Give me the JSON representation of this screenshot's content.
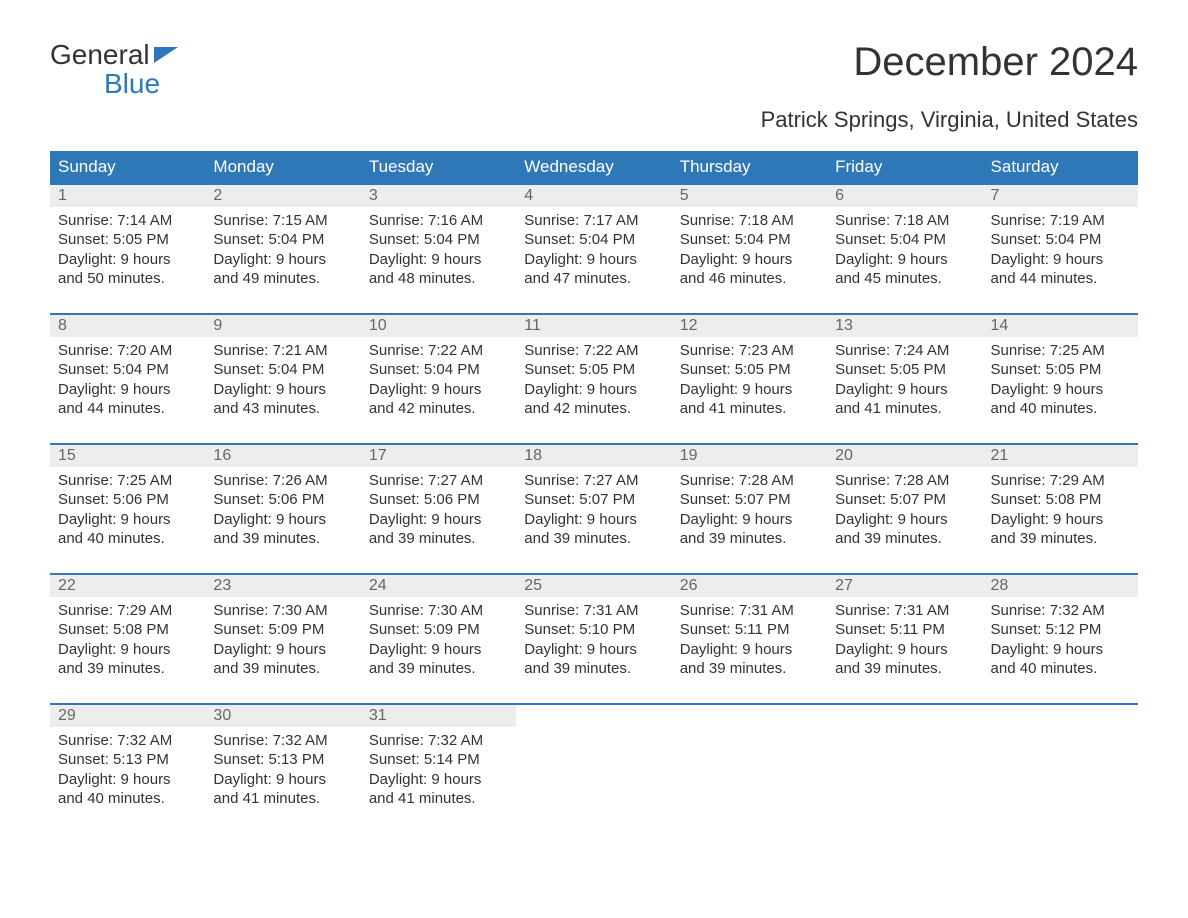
{
  "logo": {
    "line1": "General",
    "line2": "Blue"
  },
  "title": "December 2024",
  "subtitle": "Patrick Springs, Virginia, United States",
  "colors": {
    "header_bg": "#2f78b7",
    "header_text": "#ffffff",
    "daynum_bg": "#ededed",
    "daynum_text": "#666666",
    "body_text": "#333333",
    "row_border": "#2f78b7"
  },
  "weekdays": [
    "Sunday",
    "Monday",
    "Tuesday",
    "Wednesday",
    "Thursday",
    "Friday",
    "Saturday"
  ],
  "weeks": [
    [
      {
        "n": "1",
        "sr": "Sunrise: 7:14 AM",
        "ss": "Sunset: 5:05 PM",
        "d1": "Daylight: 9 hours",
        "d2": "and 50 minutes."
      },
      {
        "n": "2",
        "sr": "Sunrise: 7:15 AM",
        "ss": "Sunset: 5:04 PM",
        "d1": "Daylight: 9 hours",
        "d2": "and 49 minutes."
      },
      {
        "n": "3",
        "sr": "Sunrise: 7:16 AM",
        "ss": "Sunset: 5:04 PM",
        "d1": "Daylight: 9 hours",
        "d2": "and 48 minutes."
      },
      {
        "n": "4",
        "sr": "Sunrise: 7:17 AM",
        "ss": "Sunset: 5:04 PM",
        "d1": "Daylight: 9 hours",
        "d2": "and 47 minutes."
      },
      {
        "n": "5",
        "sr": "Sunrise: 7:18 AM",
        "ss": "Sunset: 5:04 PM",
        "d1": "Daylight: 9 hours",
        "d2": "and 46 minutes."
      },
      {
        "n": "6",
        "sr": "Sunrise: 7:18 AM",
        "ss": "Sunset: 5:04 PM",
        "d1": "Daylight: 9 hours",
        "d2": "and 45 minutes."
      },
      {
        "n": "7",
        "sr": "Sunrise: 7:19 AM",
        "ss": "Sunset: 5:04 PM",
        "d1": "Daylight: 9 hours",
        "d2": "and 44 minutes."
      }
    ],
    [
      {
        "n": "8",
        "sr": "Sunrise: 7:20 AM",
        "ss": "Sunset: 5:04 PM",
        "d1": "Daylight: 9 hours",
        "d2": "and 44 minutes."
      },
      {
        "n": "9",
        "sr": "Sunrise: 7:21 AM",
        "ss": "Sunset: 5:04 PM",
        "d1": "Daylight: 9 hours",
        "d2": "and 43 minutes."
      },
      {
        "n": "10",
        "sr": "Sunrise: 7:22 AM",
        "ss": "Sunset: 5:04 PM",
        "d1": "Daylight: 9 hours",
        "d2": "and 42 minutes."
      },
      {
        "n": "11",
        "sr": "Sunrise: 7:22 AM",
        "ss": "Sunset: 5:05 PM",
        "d1": "Daylight: 9 hours",
        "d2": "and 42 minutes."
      },
      {
        "n": "12",
        "sr": "Sunrise: 7:23 AM",
        "ss": "Sunset: 5:05 PM",
        "d1": "Daylight: 9 hours",
        "d2": "and 41 minutes."
      },
      {
        "n": "13",
        "sr": "Sunrise: 7:24 AM",
        "ss": "Sunset: 5:05 PM",
        "d1": "Daylight: 9 hours",
        "d2": "and 41 minutes."
      },
      {
        "n": "14",
        "sr": "Sunrise: 7:25 AM",
        "ss": "Sunset: 5:05 PM",
        "d1": "Daylight: 9 hours",
        "d2": "and 40 minutes."
      }
    ],
    [
      {
        "n": "15",
        "sr": "Sunrise: 7:25 AM",
        "ss": "Sunset: 5:06 PM",
        "d1": "Daylight: 9 hours",
        "d2": "and 40 minutes."
      },
      {
        "n": "16",
        "sr": "Sunrise: 7:26 AM",
        "ss": "Sunset: 5:06 PM",
        "d1": "Daylight: 9 hours",
        "d2": "and 39 minutes."
      },
      {
        "n": "17",
        "sr": "Sunrise: 7:27 AM",
        "ss": "Sunset: 5:06 PM",
        "d1": "Daylight: 9 hours",
        "d2": "and 39 minutes."
      },
      {
        "n": "18",
        "sr": "Sunrise: 7:27 AM",
        "ss": "Sunset: 5:07 PM",
        "d1": "Daylight: 9 hours",
        "d2": "and 39 minutes."
      },
      {
        "n": "19",
        "sr": "Sunrise: 7:28 AM",
        "ss": "Sunset: 5:07 PM",
        "d1": "Daylight: 9 hours",
        "d2": "and 39 minutes."
      },
      {
        "n": "20",
        "sr": "Sunrise: 7:28 AM",
        "ss": "Sunset: 5:07 PM",
        "d1": "Daylight: 9 hours",
        "d2": "and 39 minutes."
      },
      {
        "n": "21",
        "sr": "Sunrise: 7:29 AM",
        "ss": "Sunset: 5:08 PM",
        "d1": "Daylight: 9 hours",
        "d2": "and 39 minutes."
      }
    ],
    [
      {
        "n": "22",
        "sr": "Sunrise: 7:29 AM",
        "ss": "Sunset: 5:08 PM",
        "d1": "Daylight: 9 hours",
        "d2": "and 39 minutes."
      },
      {
        "n": "23",
        "sr": "Sunrise: 7:30 AM",
        "ss": "Sunset: 5:09 PM",
        "d1": "Daylight: 9 hours",
        "d2": "and 39 minutes."
      },
      {
        "n": "24",
        "sr": "Sunrise: 7:30 AM",
        "ss": "Sunset: 5:09 PM",
        "d1": "Daylight: 9 hours",
        "d2": "and 39 minutes."
      },
      {
        "n": "25",
        "sr": "Sunrise: 7:31 AM",
        "ss": "Sunset: 5:10 PM",
        "d1": "Daylight: 9 hours",
        "d2": "and 39 minutes."
      },
      {
        "n": "26",
        "sr": "Sunrise: 7:31 AM",
        "ss": "Sunset: 5:11 PM",
        "d1": "Daylight: 9 hours",
        "d2": "and 39 minutes."
      },
      {
        "n": "27",
        "sr": "Sunrise: 7:31 AM",
        "ss": "Sunset: 5:11 PM",
        "d1": "Daylight: 9 hours",
        "d2": "and 39 minutes."
      },
      {
        "n": "28",
        "sr": "Sunrise: 7:32 AM",
        "ss": "Sunset: 5:12 PM",
        "d1": "Daylight: 9 hours",
        "d2": "and 40 minutes."
      }
    ],
    [
      {
        "n": "29",
        "sr": "Sunrise: 7:32 AM",
        "ss": "Sunset: 5:13 PM",
        "d1": "Daylight: 9 hours",
        "d2": "and 40 minutes."
      },
      {
        "n": "30",
        "sr": "Sunrise: 7:32 AM",
        "ss": "Sunset: 5:13 PM",
        "d1": "Daylight: 9 hours",
        "d2": "and 41 minutes."
      },
      {
        "n": "31",
        "sr": "Sunrise: 7:32 AM",
        "ss": "Sunset: 5:14 PM",
        "d1": "Daylight: 9 hours",
        "d2": "and 41 minutes."
      },
      {
        "empty": true
      },
      {
        "empty": true
      },
      {
        "empty": true
      },
      {
        "empty": true
      }
    ]
  ]
}
